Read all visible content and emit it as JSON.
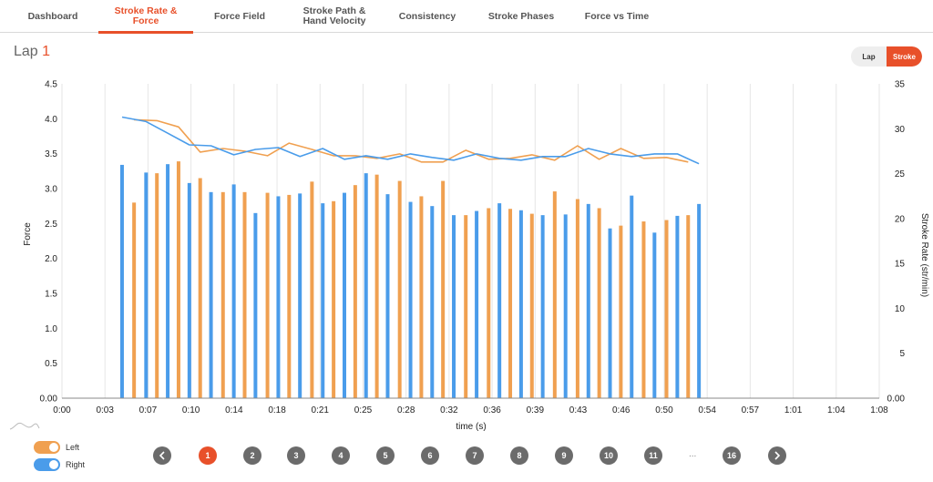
{
  "tabs": [
    {
      "label": "Dashboard",
      "active": false
    },
    {
      "label": "Stroke Rate &\nForce",
      "active": true
    },
    {
      "label": "Force Field",
      "active": false
    },
    {
      "label": "Stroke Path &\nHand Velocity",
      "active": false
    },
    {
      "label": "Consistency",
      "active": false
    },
    {
      "label": "Stroke Phases",
      "active": false
    },
    {
      "label": "Force vs Time",
      "active": false
    }
  ],
  "lap": {
    "label": "Lap",
    "number": "1"
  },
  "view_toggle": {
    "lap": "Lap",
    "stroke": "Stroke",
    "selected": "Stroke"
  },
  "legend": {
    "left_label": "Left",
    "right_label": "Right",
    "left_color": "#f0a050",
    "right_color": "#4a9cea",
    "left_on": true,
    "right_on": true
  },
  "pagination": {
    "pages": [
      "1",
      "2",
      "3",
      "4",
      "5",
      "6",
      "7",
      "8",
      "9",
      "10",
      "11"
    ],
    "ellipsis": "...",
    "last": "16",
    "current": "1"
  },
  "chart_data": {
    "type": "bar+line",
    "xlabel": "time (s)",
    "ylabel_left": "Force",
    "ylabel_right": "Stroke Rate (str/min)",
    "x_ticks": [
      "0:00",
      "0:03",
      "0:07",
      "0:10",
      "0:14",
      "0:18",
      "0:21",
      "0:25",
      "0:28",
      "0:32",
      "0:36",
      "0:39",
      "0:43",
      "0:46",
      "0:50",
      "0:54",
      "0:57",
      "1:01",
      "1:04",
      "1:08"
    ],
    "y_left_ticks": [
      "0.00",
      "0.5",
      "1.0",
      "1.5",
      "2.0",
      "2.5",
      "3.0",
      "3.5",
      "4.0",
      "4.5"
    ],
    "y_right_ticks": [
      "0.00",
      "5",
      "10",
      "15",
      "20",
      "25",
      "30",
      "35"
    ],
    "ylim_left": [
      0,
      4.5
    ],
    "ylim_right": [
      0,
      35
    ],
    "xlim": [
      0,
      68
    ],
    "grid": "vertical",
    "right_force": {
      "color": "#4a9cea",
      "x": [
        5.0,
        7.0,
        8.8,
        10.6,
        12.4,
        14.3,
        16.1,
        18.0,
        19.8,
        21.7,
        23.5,
        25.3,
        27.1,
        29.0,
        30.8,
        32.6,
        34.5,
        36.4,
        38.2,
        40.0,
        41.9,
        43.8,
        45.6,
        47.4,
        49.3,
        51.2,
        53.0,
        54.8,
        56.6,
        58.5,
        60.3
      ],
      "values": [
        3.34,
        3.23,
        3.35,
        3.08,
        2.95,
        3.06,
        2.65,
        2.89,
        2.93,
        2.79,
        2.94,
        3.22,
        2.92,
        2.81,
        2.75,
        2.62,
        2.68,
        2.79,
        2.69,
        2.62,
        2.63,
        2.78,
        2.43,
        2.9,
        2.37,
        2.61,
        2.78,
        0,
        0,
        0,
        0
      ]
    },
    "left_force": {
      "color": "#f0a050",
      "x": [
        6.0,
        7.9,
        9.7,
        11.5,
        13.4,
        15.2,
        17.1,
        18.9,
        20.8,
        22.6,
        24.4,
        26.2,
        28.1,
        29.9,
        31.7,
        33.6,
        35.5,
        37.3,
        39.1,
        41.0,
        42.9,
        44.7,
        46.5,
        48.4,
        50.3,
        52.1,
        53.9,
        55.7
      ],
      "values": [
        2.8,
        3.22,
        3.39,
        3.15,
        2.95,
        2.95,
        2.94,
        2.91,
        3.1,
        2.82,
        3.05,
        3.2,
        3.11,
        2.89,
        3.11,
        2.62,
        2.72,
        2.71,
        2.64,
        2.96,
        2.85,
        2.72,
        2.47,
        2.53,
        2.55,
        2.62,
        0,
        0
      ]
    },
    "right_rate": {
      "color": "#4a9cea",
      "x": [
        5.0,
        7.0,
        8.8,
        10.6,
        12.4,
        14.3,
        16.1,
        18.0,
        19.8,
        21.7,
        23.5,
        25.3,
        27.1,
        29.0,
        30.8,
        32.6,
        34.5,
        36.4,
        38.2,
        40.0,
        41.9,
        43.8,
        45.6,
        47.4,
        49.3,
        51.2,
        53.0,
        54.8,
        56.6,
        58.5,
        60.3
      ],
      "values": [
        31.3,
        30.8,
        29.5,
        28.2,
        28.1,
        27.1,
        27.7,
        27.9,
        26.9,
        27.8,
        26.6,
        27.0,
        26.6,
        27.2,
        26.8,
        26.5,
        27.2,
        26.7,
        26.5,
        26.9,
        26.9,
        27.8,
        27.2,
        26.9,
        27.2,
        27.2,
        26.1,
        0,
        0,
        0,
        0
      ]
    },
    "left_rate": {
      "color": "#f0a050",
      "x": [
        6.0,
        7.9,
        9.7,
        11.5,
        13.4,
        15.2,
        17.1,
        18.9,
        20.8,
        22.6,
        24.4,
        26.2,
        28.1,
        29.9,
        31.7,
        33.6,
        35.5,
        37.3,
        39.1,
        41.0,
        42.9,
        44.7,
        46.5,
        48.4,
        50.3,
        52.1,
        53.9,
        55.7
      ],
      "values": [
        31.0,
        30.9,
        30.2,
        27.4,
        27.8,
        27.5,
        27.0,
        28.4,
        27.7,
        27.0,
        27.0,
        26.7,
        27.2,
        26.3,
        26.3,
        27.6,
        26.6,
        26.7,
        27.1,
        26.5,
        28.1,
        26.6,
        27.8,
        26.7,
        26.8,
        26.3,
        0,
        0
      ]
    }
  }
}
